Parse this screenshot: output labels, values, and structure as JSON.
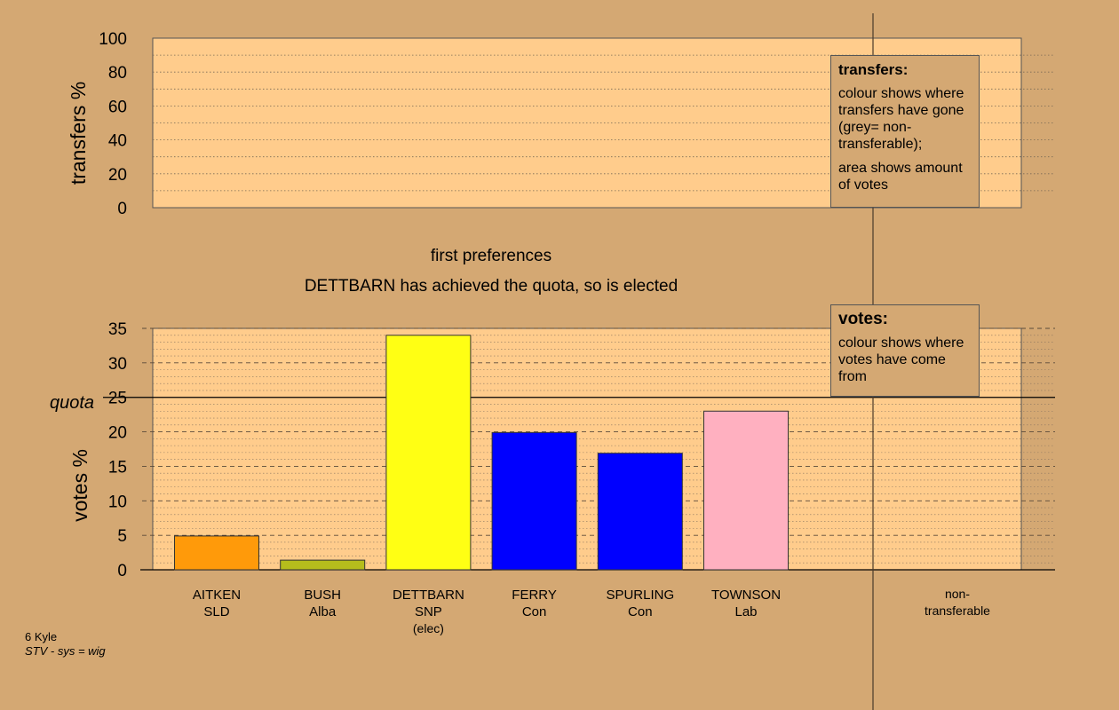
{
  "chart_data": [
    {
      "type": "bar",
      "panel": "transfers",
      "ylabel": "transfers %",
      "ylim": [
        0,
        100
      ],
      "yticks": [
        0,
        20,
        40,
        60,
        80,
        100
      ],
      "values": []
    },
    {
      "type": "bar",
      "panel": "votes",
      "ylabel": "votes %",
      "ylim": [
        0,
        35
      ],
      "yticks": [
        0,
        5,
        10,
        15,
        20,
        25,
        30,
        35
      ],
      "quota": 25,
      "quota_label": "quota",
      "categories": [
        {
          "name": "AITKEN",
          "party": "SLD",
          "extra": ""
        },
        {
          "name": "BUSH",
          "party": "Alba",
          "extra": ""
        },
        {
          "name": "DETTBARN",
          "party": "SNP",
          "extra": "(elec)"
        },
        {
          "name": "FERRY",
          "party": "Con",
          "extra": ""
        },
        {
          "name": "SPURLING",
          "party": "Con",
          "extra": ""
        },
        {
          "name": "TOWNSON",
          "party": "Lab",
          "extra": ""
        }
      ],
      "values": [
        4.9,
        1.4,
        34.0,
        19.9,
        16.9,
        23.0
      ],
      "colors": [
        "#ff9a0a",
        "#b5bd1c",
        "#ffff14",
        "#0000ff",
        "#0000ff",
        "#ffb0c0"
      ],
      "nontransferable": {
        "label_line1": "non-",
        "label_line2": "transferable",
        "value": 0
      }
    }
  ],
  "captions": {
    "stage": "first preferences",
    "result": "DETTBARN has achieved the quota, so is elected"
  },
  "legend_transfers": {
    "title": "transfers:",
    "line1": "colour shows where transfers have gone (grey= non-transferable);",
    "line2": "area shows amount of votes"
  },
  "legend_votes": {
    "title": "votes:",
    "line1": "colour shows where votes have come from"
  },
  "footer": {
    "ward": "6 Kyle",
    "system": "STV - sys = wig"
  },
  "colors": {
    "background": "#d4a873",
    "plot_bg": "#ffcc8c"
  }
}
